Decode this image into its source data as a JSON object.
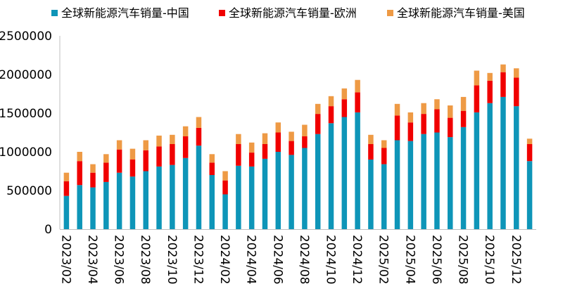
{
  "chart_data": {
    "type": "bar",
    "stacked": true,
    "title": "",
    "xlabel": "",
    "ylabel": "",
    "ylim": [
      0,
      2500000
    ],
    "yticks": [
      0,
      500000,
      1000000,
      1500000,
      2000000,
      2500000
    ],
    "ytick_labels": [
      "0",
      "500000",
      "1000000",
      "1500000",
      "2000000",
      "2500000"
    ],
    "legend_position": "top",
    "categories": [
      "2023/02",
      "2023/03",
      "2023/04",
      "2023/05",
      "2023/06",
      "2023/07",
      "2023/08",
      "2023/09",
      "2023/10",
      "2023/11",
      "2023/12",
      "2024/01",
      "2024/02",
      "2024/03",
      "2024/04",
      "2024/05",
      "2024/06",
      "2024/07",
      "2024/08",
      "2024/09",
      "2024/10",
      "2024/11",
      "2024/12",
      "2025/01",
      "2025/02",
      "2025/03",
      "2025/04",
      "2025/05",
      "2025/06",
      "2025/07",
      "2025/08",
      "2025/09",
      "2025/10",
      "2025/11",
      "2025/12",
      "2026/01"
    ],
    "xtick_labels": [
      "2023/02",
      "2023/04",
      "2023/06",
      "2023/08",
      "2023/10",
      "2023/12",
      "2024/02",
      "2024/04",
      "2024/06",
      "2024/08",
      "2024/10",
      "2024/12",
      "2025/02",
      "2025/04",
      "2025/06",
      "2025/08",
      "2025/10",
      "2025/12"
    ],
    "series": [
      {
        "name": "全球新能源汽车销量-中国",
        "color": "#0E95B8",
        "values": [
          430000,
          570000,
          540000,
          610000,
          730000,
          680000,
          750000,
          810000,
          830000,
          920000,
          1080000,
          700000,
          450000,
          820000,
          810000,
          910000,
          1000000,
          960000,
          1050000,
          1230000,
          1370000,
          1450000,
          1510000,
          900000,
          840000,
          1150000,
          1140000,
          1230000,
          1250000,
          1190000,
          1320000,
          1510000,
          1630000,
          1710000,
          1590000,
          880000
        ]
      },
      {
        "name": "全球新能源汽车销量-欧洲",
        "color": "#F00000",
        "values": [
          190000,
          310000,
          190000,
          250000,
          300000,
          220000,
          270000,
          260000,
          270000,
          280000,
          230000,
          160000,
          180000,
          280000,
          180000,
          190000,
          250000,
          180000,
          150000,
          260000,
          220000,
          230000,
          260000,
          200000,
          210000,
          320000,
          240000,
          260000,
          300000,
          250000,
          210000,
          350000,
          290000,
          320000,
          370000,
          220000
        ]
      },
      {
        "name": "全球新能源汽车销量-美国",
        "color": "#EE9A45",
        "values": [
          110000,
          120000,
          110000,
          110000,
          120000,
          140000,
          130000,
          140000,
          120000,
          130000,
          140000,
          110000,
          120000,
          130000,
          130000,
          140000,
          130000,
          120000,
          150000,
          130000,
          130000,
          140000,
          160000,
          120000,
          100000,
          150000,
          130000,
          140000,
          130000,
          160000,
          180000,
          190000,
          100000,
          100000,
          120000,
          70000
        ]
      }
    ]
  }
}
